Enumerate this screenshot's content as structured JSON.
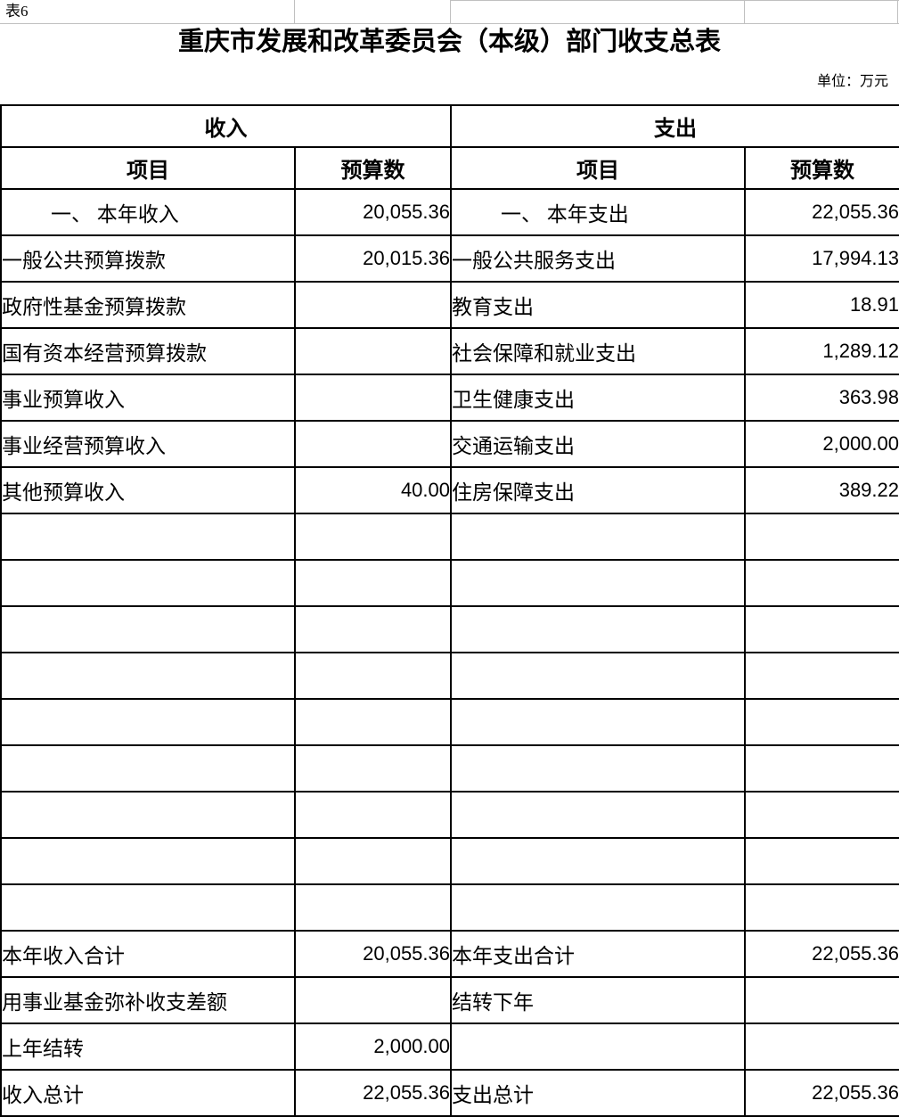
{
  "page": {
    "sheet_label": "表6",
    "title": "重庆市发展和改革委员会（本级）部门收支总表",
    "unit_note": "单位：万元"
  },
  "colors": {
    "background": "#ffffff",
    "text": "#000000",
    "table_border": "#000000",
    "top_gridline": "#c0c0c0"
  },
  "table": {
    "section_headers": {
      "revenue": "收入",
      "expenditure": "支出"
    },
    "column_headers": {
      "item": "项目",
      "budget": "预算数"
    },
    "rows": [
      {
        "indent": true,
        "revenue_item": "一、 本年收入",
        "revenue_value": "20,055.36",
        "expenditure_item": "一、 本年支出",
        "expenditure_value": "22,055.36"
      },
      {
        "indent": false,
        "revenue_item": "一般公共预算拨款",
        "revenue_value": "20,015.36",
        "expenditure_item": "一般公共服务支出",
        "expenditure_value": "17,994.13"
      },
      {
        "indent": false,
        "revenue_item": "政府性基金预算拨款",
        "revenue_value": "",
        "expenditure_item": "教育支出",
        "expenditure_value": "18.91"
      },
      {
        "indent": false,
        "revenue_item": "国有资本经营预算拨款",
        "revenue_value": "",
        "expenditure_item": "社会保障和就业支出",
        "expenditure_value": "1,289.12"
      },
      {
        "indent": false,
        "revenue_item": "事业预算收入",
        "revenue_value": "",
        "expenditure_item": "卫生健康支出",
        "expenditure_value": "363.98"
      },
      {
        "indent": false,
        "revenue_item": "事业经营预算收入",
        "revenue_value": "",
        "expenditure_item": "交通运输支出",
        "expenditure_value": "2,000.00"
      },
      {
        "indent": false,
        "revenue_item": "其他预算收入",
        "revenue_value": "40.00",
        "expenditure_item": "住房保障支出",
        "expenditure_value": "389.22"
      },
      {
        "indent": false,
        "revenue_item": "",
        "revenue_value": "",
        "expenditure_item": "",
        "expenditure_value": ""
      },
      {
        "indent": false,
        "revenue_item": "",
        "revenue_value": "",
        "expenditure_item": "",
        "expenditure_value": ""
      },
      {
        "indent": false,
        "revenue_item": "",
        "revenue_value": "",
        "expenditure_item": "",
        "expenditure_value": ""
      },
      {
        "indent": false,
        "revenue_item": "",
        "revenue_value": "",
        "expenditure_item": "",
        "expenditure_value": ""
      },
      {
        "indent": false,
        "revenue_item": "",
        "revenue_value": "",
        "expenditure_item": "",
        "expenditure_value": ""
      },
      {
        "indent": false,
        "revenue_item": "",
        "revenue_value": "",
        "expenditure_item": "",
        "expenditure_value": ""
      },
      {
        "indent": false,
        "revenue_item": "",
        "revenue_value": "",
        "expenditure_item": "",
        "expenditure_value": ""
      },
      {
        "indent": false,
        "revenue_item": "",
        "revenue_value": "",
        "expenditure_item": "",
        "expenditure_value": ""
      },
      {
        "indent": false,
        "revenue_item": "",
        "revenue_value": "",
        "expenditure_item": "",
        "expenditure_value": ""
      },
      {
        "indent": false,
        "revenue_item": "本年收入合计",
        "revenue_value": "20,055.36",
        "expenditure_item": "本年支出合计",
        "expenditure_value": "22,055.36"
      },
      {
        "indent": false,
        "revenue_item": "用事业基金弥补收支差额",
        "revenue_value": "",
        "expenditure_item": "结转下年",
        "expenditure_value": ""
      },
      {
        "indent": false,
        "revenue_item": "上年结转",
        "revenue_value": "2,000.00",
        "expenditure_item": "",
        "expenditure_value": ""
      },
      {
        "indent": false,
        "revenue_item": "收入总计",
        "revenue_value": "22,055.36",
        "expenditure_item": "支出总计",
        "expenditure_value": "22,055.36"
      }
    ]
  }
}
